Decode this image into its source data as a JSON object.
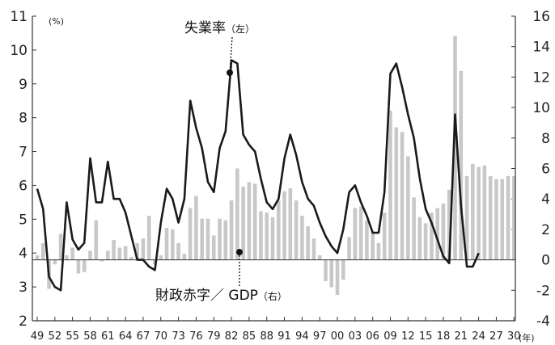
{
  "chart_data": {
    "type": "bar+line",
    "left_axis": {
      "unit_label": "(%)",
      "min": 2,
      "max": 11,
      "ticks": [
        "2",
        "3",
        "4",
        "5",
        "6",
        "7",
        "8",
        "9",
        "10",
        "11"
      ]
    },
    "right_axis": {
      "min": -4,
      "max": 16,
      "ticks": [
        "-4",
        "-2",
        "0",
        "2",
        "4",
        "6",
        "8",
        "10",
        "12",
        "14",
        "16"
      ]
    },
    "x_axis": {
      "unit_label": "(年)",
      "tick_labels": [
        "49",
        "52",
        "55",
        "58",
        "61",
        "64",
        "67",
        "70",
        "73",
        "76",
        "79",
        "82",
        "85",
        "88",
        "91",
        "94",
        "97",
        "00",
        "03",
        "06",
        "09",
        "12",
        "15",
        "18",
        "21",
        "24",
        "27",
        "30"
      ],
      "first_year": 1949,
      "last_year": 2030
    },
    "annotations": {
      "unemployment": "失業率",
      "unemployment_side": "（左）",
      "deficit": "財政赤字／ GDP",
      "deficit_side": "（右）"
    },
    "colors": {
      "bars": "#c8c8c8",
      "line": "#1a1a1a",
      "axis": "#333333",
      "zero_line": "#333333"
    },
    "series": [
      {
        "kind": "bar",
        "axis": "right",
        "years": [
          1949,
          1950,
          1951,
          1952,
          1953,
          1954,
          1955,
          1956,
          1957,
          1958,
          1959,
          1960,
          1961,
          1962,
          1963,
          1964,
          1965,
          1966,
          1967,
          1968,
          1969,
          1970,
          1971,
          1972,
          1973,
          1974,
          1975,
          1976,
          1977,
          1978,
          1979,
          1980,
          1981,
          1982,
          1983,
          1984,
          1985,
          1986,
          1987,
          1988,
          1989,
          1990,
          1991,
          1992,
          1993,
          1994,
          1995,
          1996,
          1997,
          1998,
          1999,
          2000,
          2001,
          2002,
          2003,
          2004,
          2005,
          2006,
          2007,
          2008,
          2009,
          2010,
          2011,
          2012,
          2013,
          2014,
          2015,
          2016,
          2017,
          2018,
          2019,
          2020,
          2021,
          2022,
          2023,
          2024,
          2025,
          2026,
          2027,
          2028,
          2029,
          2030
        ],
        "values": [
          0.3,
          1.1,
          -1.9,
          -0.3,
          1.7,
          0.3,
          0.8,
          -0.9,
          -0.8,
          0.6,
          2.6,
          -0.1,
          0.6,
          1.3,
          0.8,
          0.9,
          0.2,
          1.1,
          1.4,
          2.9,
          -0.3,
          0.3,
          2.1,
          2.0,
          1.1,
          0.4,
          3.4,
          4.2,
          2.7,
          2.7,
          1.6,
          2.7,
          2.6,
          3.9,
          6.0,
          4.8,
          5.1,
          5.0,
          3.2,
          3.1,
          2.8,
          3.9,
          4.5,
          4.7,
          3.9,
          2.9,
          2.2,
          1.4,
          0.3,
          -1.4,
          -1.8,
          -2.3,
          -1.3,
          1.5,
          3.4,
          3.5,
          2.6,
          1.8,
          1.1,
          3.1,
          9.8,
          8.7,
          8.4,
          6.8,
          4.1,
          2.8,
          2.4,
          3.1,
          3.4,
          3.7,
          4.6,
          14.7,
          12.4,
          5.5,
          6.3,
          6.1,
          6.2,
          5.5,
          5.3,
          5.3,
          5.5,
          5.5
        ]
      },
      {
        "kind": "line",
        "axis": "left",
        "years": [
          1949,
          1950,
          1951,
          1952,
          1953,
          1954,
          1955,
          1956,
          1957,
          1958,
          1959,
          1960,
          1961,
          1962,
          1963,
          1964,
          1965,
          1966,
          1967,
          1968,
          1969,
          1970,
          1971,
          1972,
          1973,
          1974,
          1975,
          1976,
          1977,
          1978,
          1979,
          1980,
          1981,
          1982,
          1983,
          1984,
          1985,
          1986,
          1987,
          1988,
          1989,
          1990,
          1991,
          1992,
          1993,
          1994,
          1995,
          1996,
          1997,
          1998,
          1999,
          2000,
          2001,
          2002,
          2003,
          2004,
          2005,
          2006,
          2007,
          2008,
          2009,
          2010,
          2011,
          2012,
          2013,
          2014,
          2015,
          2016,
          2017,
          2018,
          2019,
          2020,
          2021,
          2022,
          2023,
          2024
        ],
        "values": [
          5.9,
          5.3,
          3.3,
          3.0,
          2.9,
          5.5,
          4.4,
          4.1,
          4.3,
          6.8,
          5.5,
          5.5,
          6.7,
          5.6,
          5.6,
          5.2,
          4.5,
          3.8,
          3.8,
          3.6,
          3.5,
          4.9,
          5.9,
          5.6,
          4.9,
          5.6,
          8.5,
          7.7,
          7.1,
          6.1,
          5.8,
          7.1,
          7.6,
          9.7,
          9.6,
          7.5,
          7.2,
          7.0,
          6.2,
          5.5,
          5.3,
          5.6,
          6.8,
          7.5,
          6.9,
          6.1,
          5.6,
          5.4,
          4.9,
          4.5,
          4.2,
          4.0,
          4.7,
          5.8,
          6.0,
          5.5,
          5.1,
          4.6,
          4.6,
          5.8,
          9.3,
          9.6,
          8.9,
          8.1,
          7.4,
          6.2,
          5.3,
          4.9,
          4.4,
          3.9,
          3.7,
          8.1,
          5.4,
          3.6,
          3.6,
          4.0
        ]
      }
    ]
  }
}
